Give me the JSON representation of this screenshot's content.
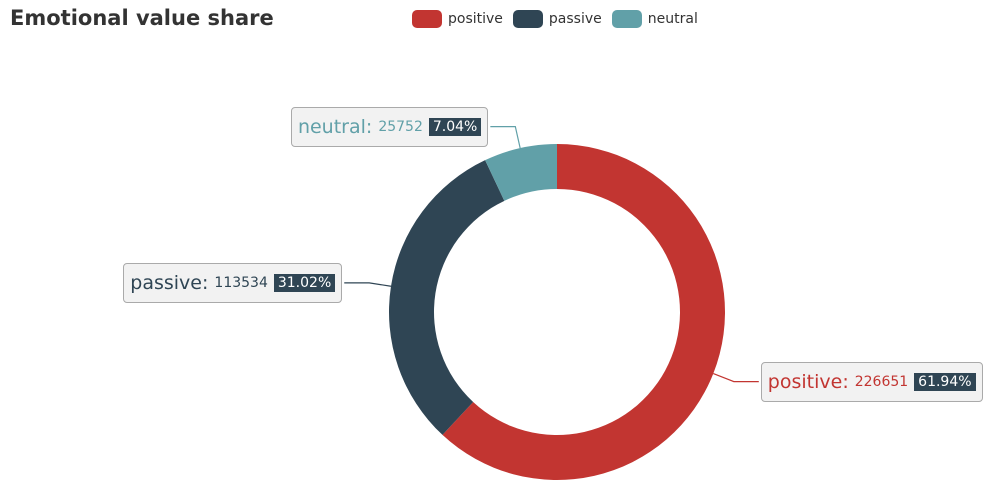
{
  "chart_data": {
    "type": "pie",
    "title": "Emotional value share",
    "categories": [
      "positive",
      "passive",
      "neutral"
    ],
    "values": [
      226651,
      113534,
      25752
    ],
    "percents": [
      {
        "value": 61.94,
        "label": "61.94%"
      },
      {
        "value": 31.02,
        "label": "31.02%"
      },
      {
        "value": 7.04,
        "label": "7.04%"
      }
    ],
    "colors": [
      "#c23531",
      "#2f4554",
      "#61a0a8"
    ],
    "label_separator": ":",
    "legend": "top"
  }
}
